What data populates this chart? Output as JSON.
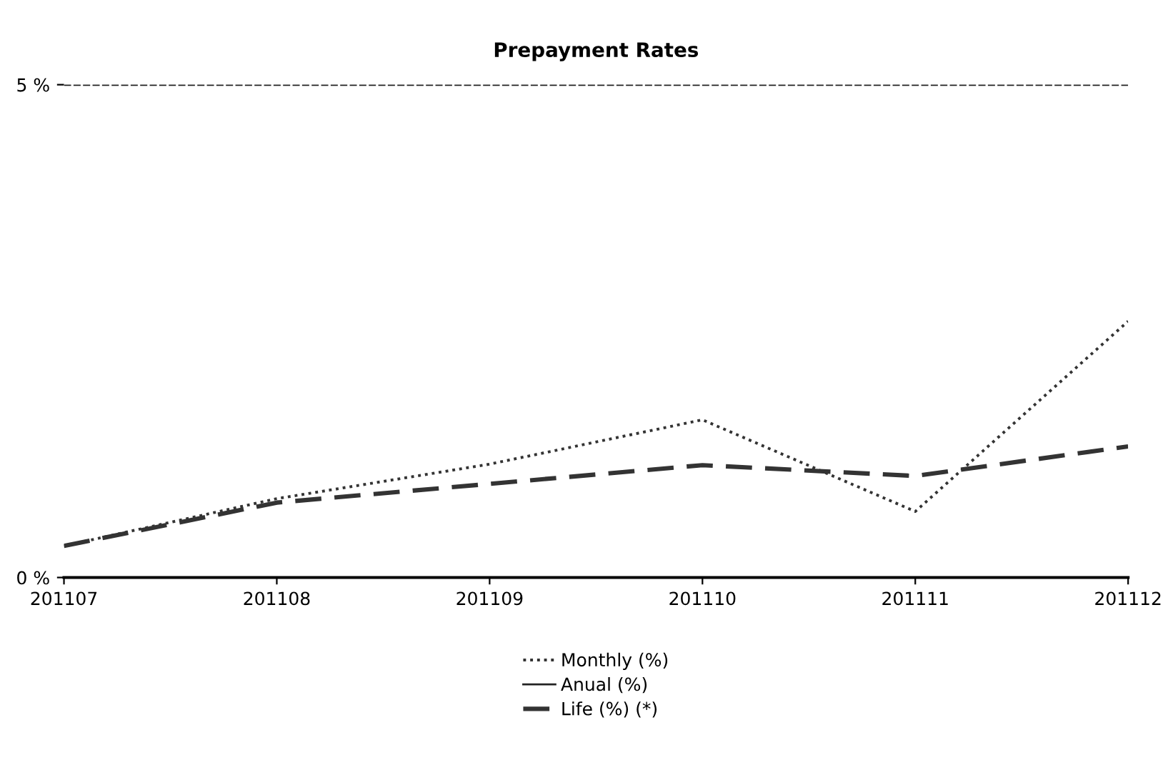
{
  "chart_data": {
    "type": "line",
    "title": "Prepayment Rates",
    "categories": [
      "201107",
      "201108",
      "201109",
      "201110",
      "201111",
      "201112"
    ],
    "series": [
      {
        "name": "Monthly (%)",
        "color": "#333333",
        "line_style": "dotted",
        "values": [
          0.32,
          0.8,
          1.15,
          1.6,
          0.67,
          2.6
        ]
      },
      {
        "name": "Anual (%)",
        "color": "#222222",
        "line_style": "solid",
        "values": [
          null,
          null,
          null,
          null,
          null,
          null
        ]
      },
      {
        "name": "Life (%) (*)",
        "color": "#333333",
        "line_style": "dashed",
        "values": [
          0.32,
          0.76,
          0.95,
          1.14,
          1.03,
          1.33
        ]
      }
    ],
    "ylim": [
      0,
      5
    ],
    "yticks": [
      {
        "value": 0,
        "label": "0 %"
      },
      {
        "value": 5,
        "label": "5 %"
      }
    ],
    "ref_lines": [
      {
        "axis": "y",
        "value": 5,
        "color": "#222222",
        "line_style": "dashed"
      }
    ],
    "legend": "bottom"
  }
}
